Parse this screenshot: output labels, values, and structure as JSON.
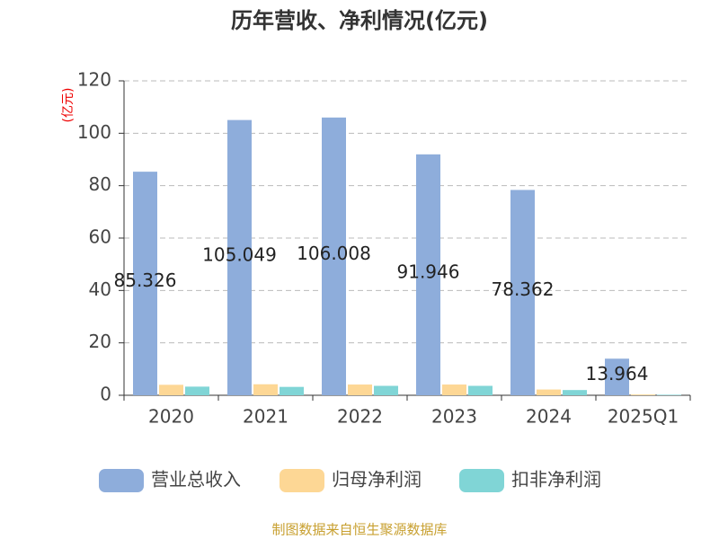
{
  "chart_data": {
    "type": "bar",
    "title": "历年营收、净利情况(亿元)",
    "y_label": "(亿元)",
    "categories": [
      "2020",
      "2021",
      "2022",
      "2023",
      "2024",
      "2025Q1"
    ],
    "series": [
      {
        "name": "营业总收入",
        "color": "#8eaddb",
        "values": [
          85.326,
          105.049,
          106.008,
          91.946,
          78.362,
          13.964
        ],
        "show_labels": true
      },
      {
        "name": "归母净利润",
        "color": "#fdd795",
        "values": [
          4.0,
          4.2,
          4.1,
          4.1,
          2.2,
          0.3
        ],
        "show_labels": false
      },
      {
        "name": "扣非净利润",
        "color": "#80d5d6",
        "values": [
          3.3,
          3.2,
          3.6,
          3.6,
          2.0,
          0.2
        ],
        "show_labels": false
      }
    ],
    "ylim": [
      0,
      120
    ],
    "yticks": [
      0,
      20,
      40,
      60,
      80,
      100,
      120
    ],
    "grid": true,
    "source": "制图数据来自恒生聚源数据库"
  }
}
